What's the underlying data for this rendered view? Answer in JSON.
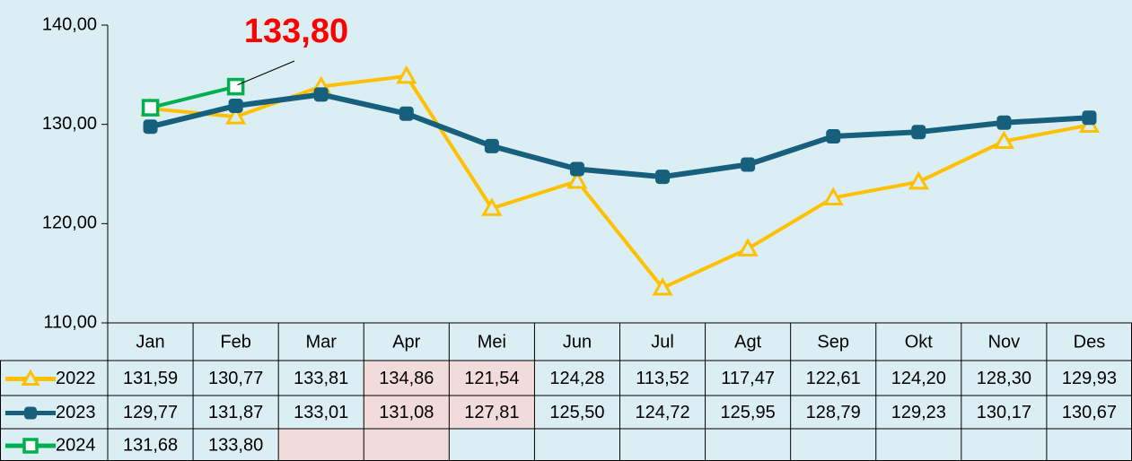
{
  "chart_data": {
    "type": "line",
    "categories": [
      "Jan",
      "Feb",
      "Mar",
      "Apr",
      "Mei",
      "Jun",
      "Jul",
      "Agt",
      "Sep",
      "Okt",
      "Nov",
      "Des"
    ],
    "series": [
      {
        "name": "2022",
        "color": "#ffc000",
        "marker": "triangle",
        "values": [
          131.59,
          130.77,
          133.81,
          134.86,
          121.54,
          124.28,
          113.52,
          117.47,
          122.61,
          124.2,
          128.3,
          129.93
        ],
        "value_labels": [
          "131,59",
          "130,77",
          "133,81",
          "134,86",
          "121,54",
          "124,28",
          "113,52",
          "117,47",
          "122,61",
          "124,20",
          "128,30",
          "129,93"
        ]
      },
      {
        "name": "2023",
        "color": "#17607d",
        "marker": "square-filled",
        "values": [
          129.77,
          131.87,
          133.01,
          131.08,
          127.81,
          125.5,
          124.72,
          125.95,
          128.79,
          129.23,
          130.17,
          130.67
        ],
        "value_labels": [
          "129,77",
          "131,87",
          "133,01",
          "131,08",
          "127,81",
          "125,50",
          "124,72",
          "125,95",
          "128,79",
          "129,23",
          "130,17",
          "130,67"
        ]
      },
      {
        "name": "2024",
        "color": "#00b050",
        "marker": "square-open",
        "values": [
          131.68,
          133.8,
          null,
          null,
          null,
          null,
          null,
          null,
          null,
          null,
          null,
          null
        ],
        "value_labels": [
          "131,68",
          "133,80",
          null,
          null,
          null,
          null,
          null,
          null,
          null,
          null,
          null,
          null
        ]
      }
    ],
    "ylim": [
      110,
      140
    ],
    "yticks": [
      {
        "value": 110,
        "label": "110,00"
      },
      {
        "value": 120,
        "label": "120,00"
      },
      {
        "value": 130,
        "label": "130,00"
      },
      {
        "value": 140,
        "label": "140,00"
      }
    ],
    "annotation": {
      "text": "133,80",
      "color": "#ff0000",
      "series": 2,
      "index": 1
    }
  }
}
